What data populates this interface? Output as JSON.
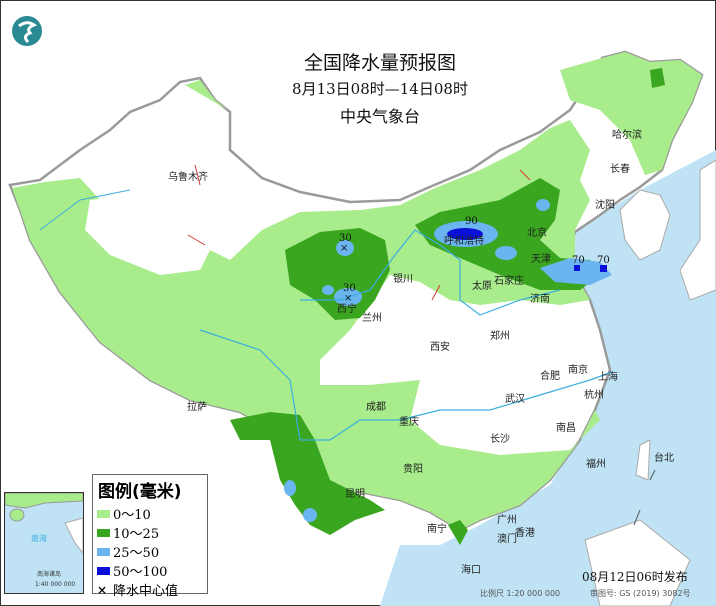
{
  "header": {
    "title": "全国降水量预报图",
    "period": "8月13日08时—14日08时",
    "issuer": "中央气象台"
  },
  "legend": {
    "title": "图例(毫米)",
    "items": [
      {
        "label": "0～10",
        "color": "#a8ec8c"
      },
      {
        "label": "10～25",
        "color": "#3aa51e"
      },
      {
        "label": "25～50",
        "color": "#6ab4ef"
      },
      {
        "label": "50～100",
        "color": "#0a10d8"
      },
      {
        "label": "降水中心值",
        "symbol": "×"
      }
    ]
  },
  "centers": [
    "30",
    "30",
    "90",
    "70",
    "70"
  ],
  "cities": [
    "乌鲁木齐",
    "哈尔滨",
    "长春",
    "沈阳",
    "北京",
    "天津",
    "呼和浩特",
    "石家庄",
    "太原",
    "济南",
    "银川",
    "西宁",
    "兰州",
    "西安",
    "郑州",
    "合肥",
    "南京",
    "上海",
    "杭州",
    "武汉",
    "南昌",
    "长沙",
    "成都",
    "重庆",
    "贵阳",
    "昆明",
    "拉萨",
    "南宁",
    "广州",
    "香港",
    "澳门",
    "福州",
    "台北",
    "海口"
  ],
  "inset": {
    "sea": "南海",
    "islands": "南海诸岛",
    "scale": "1:40 000 000"
  },
  "footer": {
    "issued": "08月12日06时发布",
    "scale": "比例尺 1:20 000 000",
    "map_no": "审图号: GS (2019) 3082号"
  },
  "colors": {
    "sea": "#bfe3f5",
    "border": "#9a9a9a",
    "river": "#3aaee0"
  }
}
